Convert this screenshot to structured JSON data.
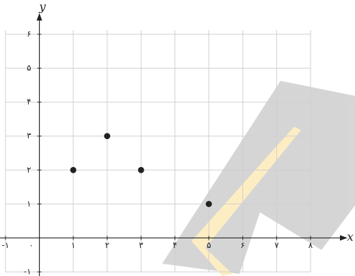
{
  "chart_data": {
    "type": "scatter",
    "x_label": "x",
    "y_label": "y",
    "x": [
      1,
      2,
      3,
      5
    ],
    "values": [
      2,
      3,
      2,
      1
    ],
    "color": "#222222",
    "xlim": [
      -1,
      8
    ],
    "ylim": [
      -1,
      6
    ],
    "xticks": [
      {
        "value": -1,
        "label": "-۱"
      },
      {
        "value": 0,
        "label": "۰"
      },
      {
        "value": 1,
        "label": "۱"
      },
      {
        "value": 2,
        "label": "۲"
      },
      {
        "value": 3,
        "label": "۳"
      },
      {
        "value": 4,
        "label": "۴"
      },
      {
        "value": 5,
        "label": "۵"
      },
      {
        "value": 6,
        "label": "۶"
      },
      {
        "value": 7,
        "label": "۷"
      },
      {
        "value": 8,
        "label": "۸"
      }
    ],
    "yticks": [
      {
        "value": -1,
        "label": "-۱"
      },
      {
        "value": 1,
        "label": "۱"
      },
      {
        "value": 2,
        "label": "۲"
      },
      {
        "value": 3,
        "label": "۳"
      },
      {
        "value": 4,
        "label": "۴"
      },
      {
        "value": 5,
        "label": "۵"
      },
      {
        "value": 6,
        "label": "۶"
      }
    ],
    "grid": true
  }
}
